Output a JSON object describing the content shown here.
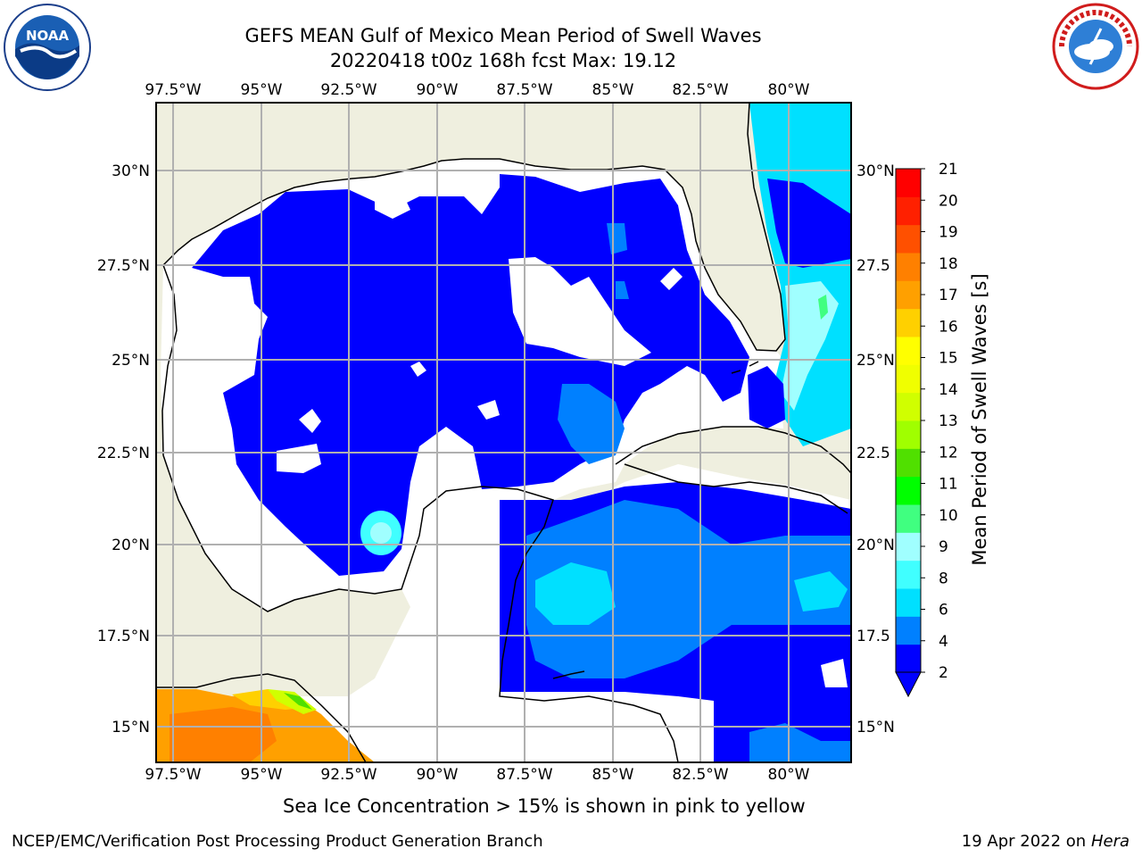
{
  "header": {
    "title_line1": "GEFS MEAN Gulf of Mexico Mean Period of Swell Waves",
    "title_line2": "20220418 t00z 168h fcst   Max: 19.12"
  },
  "logos": {
    "left": "noaa-logo",
    "right": "nws-logo"
  },
  "map": {
    "lon_labels": [
      "97.5°W",
      "95°W",
      "92.5°W",
      "90°W",
      "87.5°W",
      "85°W",
      "82.5°W",
      "80°W"
    ],
    "lat_labels_left": [
      "30°N",
      "27.5°N",
      "25°N",
      "22.5°N",
      "20°N",
      "17.5°N",
      "15°N"
    ],
    "lat_labels_right": [
      "30°N",
      "27.5",
      "25°N",
      "22.5",
      "20°N",
      "17.5",
      "15°N"
    ],
    "colors": {
      "land": "#efefdf",
      "missing": "#ffffff",
      "grid": "#b0b0b0",
      "coastline": "#000000"
    }
  },
  "colorbar": {
    "label": "Mean Period of Swell Waves [s]",
    "ticks": [
      "2",
      "4",
      "6",
      "8",
      "9",
      "10",
      "11",
      "12",
      "13",
      "14",
      "15",
      "16",
      "17",
      "18",
      "19",
      "20",
      "21"
    ],
    "colors": [
      "#0000ff",
      "#0080ff",
      "#00e0ff",
      "#40ffff",
      "#a0ffff",
      "#40ff80",
      "#00ff00",
      "#50e000",
      "#a0ff00",
      "#d0ff00",
      "#f0ff00",
      "#ffff00",
      "#ffd000",
      "#ffa000",
      "#ff8000",
      "#ff5000",
      "#ff2000",
      "#ff0000"
    ],
    "under_color": "#0000ff"
  },
  "footer": {
    "ice_note": "Sea Ice Concentration > 15% is shown in pink to yellow",
    "credit": "NCEP/EMC/Verification Post Processing Product Generation Branch",
    "date": "19 Apr 2022 on ",
    "host": "Hera"
  }
}
